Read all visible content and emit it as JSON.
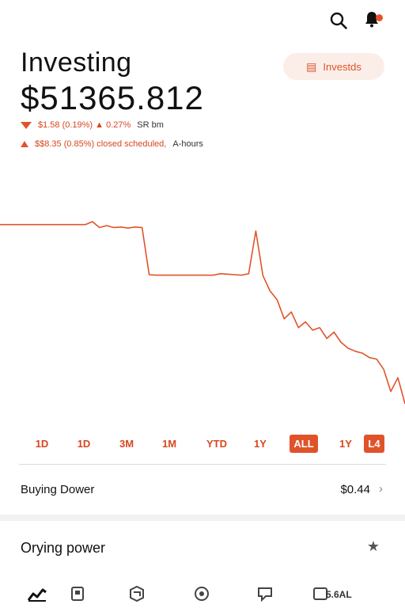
{
  "header": {
    "icons": [
      "search-icon",
      "bell-icon"
    ],
    "notification_dot_color": "#e8542a"
  },
  "title": "Investing",
  "balance": "$51365.812",
  "pill": {
    "icon": "receipt-icon",
    "label": "Investds"
  },
  "change_today": {
    "text": "$1.58 (0.19%) ▲ 0.27%",
    "suffix": "SR bm"
  },
  "change_after": {
    "text": "$$8.35 (0.85%) closed scheduled,",
    "suffix": "A-hours"
  },
  "chart_data": {
    "type": "line",
    "color": "#e0532a",
    "grid": false,
    "values": [
      100.0,
      100.0,
      100.0,
      100.0,
      100.0,
      100.0,
      100.0,
      100.0,
      100.0,
      100.0,
      100.0,
      100.0,
      100.0,
      100.6,
      99.4,
      99.8,
      99.4,
      99.5,
      99.3,
      99.5,
      99.4,
      89.8,
      89.7,
      89.7,
      89.7,
      89.7,
      89.7,
      89.7,
      89.7,
      89.7,
      89.7,
      90.0,
      89.9,
      89.8,
      89.7,
      90.0,
      98.7,
      89.6,
      86.5,
      84.7,
      80.8,
      82.2,
      79.0,
      80.2,
      78.5,
      79.0,
      76.8,
      78.1,
      76.0,
      74.8,
      74.2,
      73.8,
      72.9,
      72.6,
      70.5,
      66.0,
      68.8,
      63.5
    ]
  },
  "ranges": {
    "items": [
      "1D",
      "1D",
      "3M",
      "1M",
      "YTD",
      "1Y",
      "ALL",
      "1Y",
      "L4"
    ],
    "active": [
      6,
      8
    ]
  },
  "buying_power": {
    "label": "Buying Dower",
    "value": "$0.44"
  },
  "other_section": {
    "label": "Orying power",
    "icon": "star-icon"
  },
  "nav": {
    "icons": [
      "chart-icon",
      "tablet-icon",
      "cube-icon",
      "target-icon",
      "chat-icon"
    ],
    "label": "5.6AL"
  }
}
